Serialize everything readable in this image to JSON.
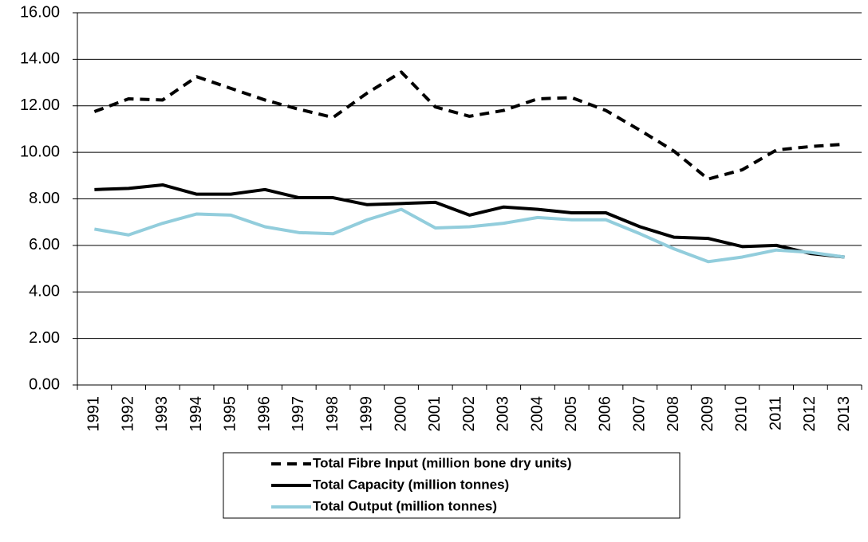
{
  "chart_data": {
    "type": "line",
    "categories": [
      "1991",
      "1992",
      "1993",
      "1994",
      "1995",
      "1996",
      "1997",
      "1998",
      "1999",
      "2000",
      "2001",
      "2002",
      "2003",
      "2004",
      "2005",
      "2006",
      "2007",
      "2008",
      "2009",
      "2010",
      "2011",
      "2012",
      "2013"
    ],
    "series": [
      {
        "name": "Total Fibre Input (million bone dry units)",
        "color": "#000000",
        "linestyle": "dashed",
        "values": [
          11.75,
          12.3,
          12.25,
          13.25,
          12.75,
          12.25,
          11.85,
          11.5,
          12.55,
          13.45,
          11.95,
          11.55,
          11.8,
          12.3,
          12.35,
          11.8,
          10.95,
          10.05,
          8.85,
          9.25,
          10.1,
          10.25,
          10.35
        ]
      },
      {
        "name": "Total Capacity (million tonnes)",
        "color": "#000000",
        "linestyle": "solid",
        "values": [
          8.4,
          8.45,
          8.6,
          8.2,
          8.2,
          8.4,
          8.05,
          8.05,
          7.75,
          7.8,
          7.85,
          7.3,
          7.65,
          7.55,
          7.4,
          7.4,
          6.8,
          6.35,
          6.3,
          5.95,
          6.0,
          5.65,
          5.5
        ]
      },
      {
        "name": "Total Output (million tonnes)",
        "color": "#92cddc",
        "linestyle": "solid",
        "values": [
          6.7,
          6.45,
          6.95,
          7.35,
          7.3,
          6.8,
          6.55,
          6.5,
          7.1,
          7.55,
          6.75,
          6.8,
          6.95,
          7.2,
          7.1,
          7.1,
          6.5,
          5.85,
          5.3,
          5.5,
          5.8,
          5.7,
          5.5
        ]
      }
    ],
    "ylim": [
      0,
      16
    ],
    "yticks": [
      {
        "value": 0,
        "label": "0.00"
      },
      {
        "value": 2,
        "label": "2.00"
      },
      {
        "value": 4,
        "label": "4.00"
      },
      {
        "value": 6,
        "label": "6.00"
      },
      {
        "value": 8,
        "label": "8.00"
      },
      {
        "value": 10,
        "label": "10.00"
      },
      {
        "value": 12,
        "label": "12.00"
      },
      {
        "value": 14,
        "label": "14.00"
      },
      {
        "value": 16,
        "label": "16.00"
      }
    ],
    "grid": true,
    "legend": "bottom"
  }
}
